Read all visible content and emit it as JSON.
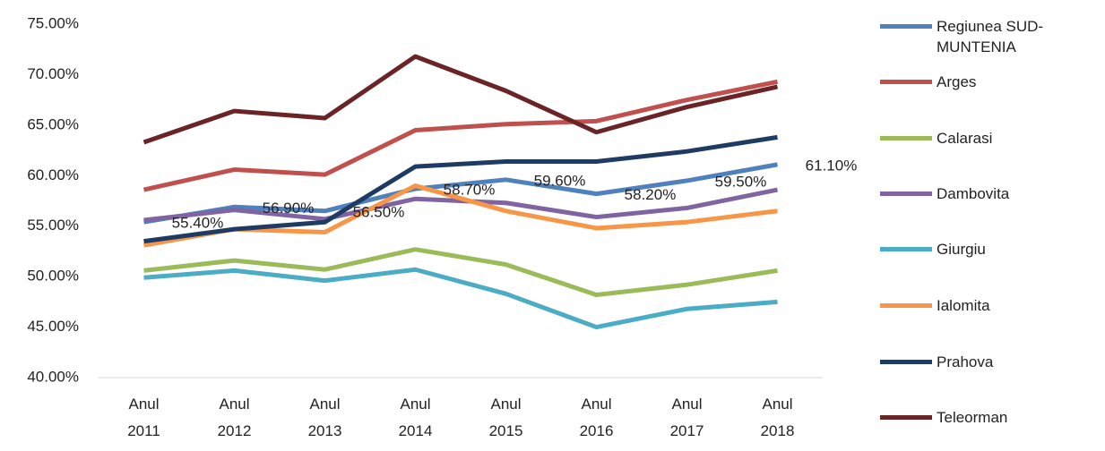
{
  "chart_data": {
    "type": "line",
    "categories": [
      "Anul 2011",
      "Anul 2012",
      "Anul 2013",
      "Anul 2014",
      "Anul 2015",
      "Anul 2016",
      "Anul 2017",
      "Anul 2018"
    ],
    "ylim": [
      40,
      75
    ],
    "yticks": [
      {
        "value": 40,
        "label": "40.00%"
      },
      {
        "value": 45,
        "label": "45.00%"
      },
      {
        "value": 50,
        "label": "50.00%"
      },
      {
        "value": 55,
        "label": "55.00%"
      },
      {
        "value": 60,
        "label": "60.00%"
      },
      {
        "value": 65,
        "label": "65.00%"
      },
      {
        "value": 70,
        "label": "70.00%"
      },
      {
        "value": 75,
        "label": "75.00%"
      }
    ],
    "grid": false,
    "legend": "right",
    "series": [
      {
        "name": "Regiunea SUD-MUNTENIA",
        "color": "#4f81bd",
        "values": [
          55.4,
          56.9,
          56.5,
          58.7,
          59.6,
          58.2,
          59.5,
          61.1
        ],
        "value_labels": [
          "55.40%",
          "56.90%",
          "56.50%",
          "58.70%",
          "59.60%",
          "58.20%",
          "59.50%",
          "61.10%"
        ]
      },
      {
        "name": "Arges",
        "color": "#c0504d",
        "values": [
          58.6,
          60.6,
          60.1,
          64.5,
          65.1,
          65.4,
          67.5,
          69.3
        ]
      },
      {
        "name": "Calarasi",
        "color": "#9bbb59",
        "values": [
          50.6,
          51.6,
          50.7,
          52.7,
          51.2,
          48.2,
          49.2,
          50.6
        ]
      },
      {
        "name": "Dambovita",
        "color": "#8064a2",
        "values": [
          55.6,
          56.6,
          55.7,
          57.7,
          57.3,
          55.9,
          56.8,
          58.6
        ]
      },
      {
        "name": "Giurgiu",
        "color": "#4bacc6",
        "values": [
          49.9,
          50.6,
          49.6,
          50.7,
          48.3,
          45.0,
          46.8,
          47.5
        ]
      },
      {
        "name": "Ialomita",
        "color": "#f79646",
        "values": [
          53.1,
          54.7,
          54.4,
          59.0,
          56.5,
          54.8,
          55.4,
          56.5
        ]
      },
      {
        "name": "Prahova",
        "color": "#1f3b63",
        "values": [
          53.5,
          54.7,
          55.4,
          60.9,
          61.4,
          61.4,
          62.4,
          63.8
        ]
      },
      {
        "name": "Teleorman",
        "color": "#6b2426",
        "values": [
          63.3,
          66.4,
          65.7,
          71.8,
          68.4,
          64.3,
          66.8,
          68.8
        ]
      }
    ]
  }
}
